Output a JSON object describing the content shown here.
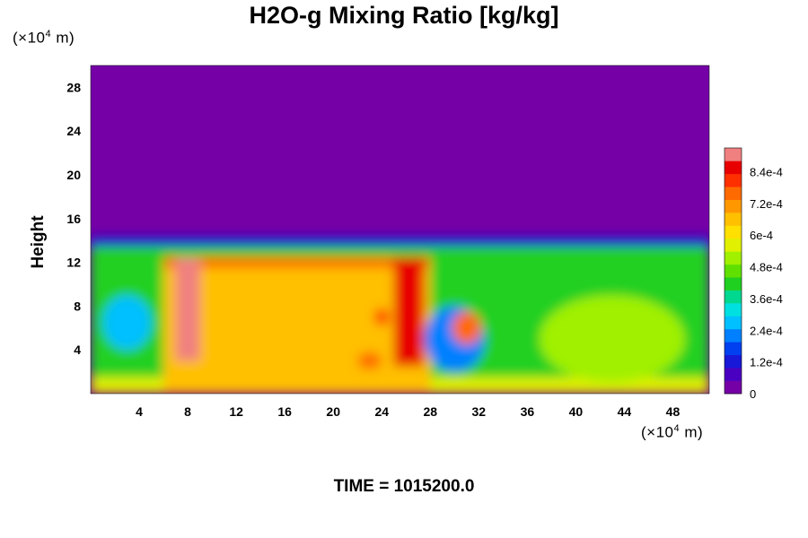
{
  "chart_data": {
    "type": "heatmap",
    "title": "H2O-g Mixing Ratio [kg/kg]",
    "ylabel": "Height",
    "x_unit": {
      "prefix": "(×10",
      "exp": "4",
      "suffix": " m)"
    },
    "y_unit": {
      "prefix": "(×10",
      "exp": "4",
      "suffix": " m)"
    },
    "xlim": [
      0,
      51
    ],
    "ylim": [
      0,
      30
    ],
    "x_ticks": [
      4,
      8,
      12,
      16,
      20,
      24,
      28,
      32,
      36,
      40,
      44,
      48
    ],
    "y_ticks": [
      4,
      8,
      12,
      16,
      20,
      24,
      28
    ],
    "colorbar": {
      "range": [
        0,
        0.00093
      ],
      "ticks": [
        {
          "value": 0,
          "label": "0"
        },
        {
          "value": 0.00012,
          "label": "1.2e-4"
        },
        {
          "value": 0.00024,
          "label": "2.4e-4"
        },
        {
          "value": 0.00036,
          "label": "3.6e-4"
        },
        {
          "value": 0.00048,
          "label": "4.8e-4"
        },
        {
          "value": 0.0006,
          "label": "6e-4"
        },
        {
          "value": 0.00072,
          "label": "7.2e-4"
        },
        {
          "value": 0.00084,
          "label": "8.4e-4"
        }
      ],
      "colors": [
        "#7400a6",
        "#4a00c0",
        "#1818d8",
        "#0040f0",
        "#0080ff",
        "#00c0ff",
        "#00e0e0",
        "#00d890",
        "#20d020",
        "#60e000",
        "#a0f000",
        "#e0f000",
        "#ffe000",
        "#ffc000",
        "#ff9800",
        "#ff6a00",
        "#ff3000",
        "#e80000",
        "#f08080"
      ]
    },
    "background_value": 0,
    "field_regions": [
      {
        "shape": "rect",
        "x": [
          0,
          51
        ],
        "y": [
          0,
          13.5
        ],
        "value": 0.00042
      },
      {
        "shape": "rect",
        "x": [
          0,
          51
        ],
        "y": [
          0,
          1.5
        ],
        "value": 0.00058
      },
      {
        "shape": "rect",
        "x": [
          6,
          28
        ],
        "y": [
          0,
          12.5
        ],
        "value": 0.00066
      },
      {
        "shape": "rect",
        "x": [
          6,
          28
        ],
        "y": [
          11.5,
          12.5
        ],
        "value": 0.00078
      },
      {
        "shape": "rect",
        "x": [
          7,
          9
        ],
        "y": [
          3,
          12.5
        ],
        "value": 0.0009
      },
      {
        "shape": "rect",
        "x": [
          25,
          27.5
        ],
        "y": [
          2.5,
          12.5
        ],
        "value": 0.00088
      },
      {
        "shape": "ellipse",
        "cx": 24,
        "cy": 7,
        "rx": 0.6,
        "ry": 0.8,
        "value": 0.0008
      },
      {
        "shape": "ellipse",
        "cx": 23,
        "cy": 3,
        "rx": 1,
        "ry": 0.8,
        "value": 0.00076
      },
      {
        "shape": "ellipse",
        "cx": 30,
        "cy": 5,
        "rx": 2.5,
        "ry": 3,
        "value": 0.00022
      },
      {
        "shape": "ellipse",
        "cx": 31,
        "cy": 6,
        "rx": 1.2,
        "ry": 1.5,
        "value": 0.00074
      },
      {
        "shape": "rect",
        "x": [
          0,
          51
        ],
        "y": [
          13.5,
          14.3
        ],
        "value": 0.00012
      },
      {
        "shape": "ellipse",
        "cx": 3,
        "cy": 6.5,
        "rx": 2,
        "ry": 2.5,
        "value": 0.00026
      },
      {
        "shape": "ellipse",
        "cx": 43,
        "cy": 5,
        "rx": 6,
        "ry": 4,
        "value": 0.00052
      }
    ]
  },
  "footer": {
    "time_label": "TIME = 1015200.0"
  }
}
